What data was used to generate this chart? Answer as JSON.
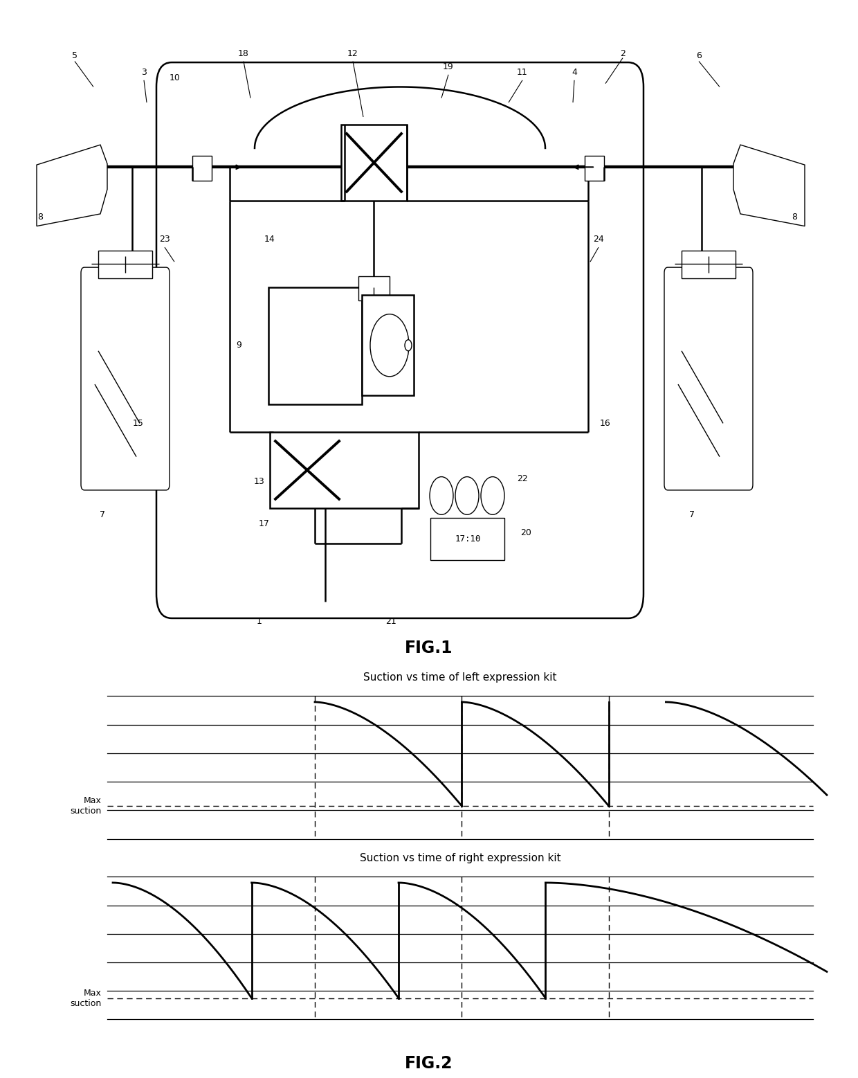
{
  "fig1_label": "FIG.1",
  "fig2_label": "FIG.2",
  "graph1_title": "Suction vs time of left expression kit",
  "graph2_title": "Suction vs time of right expression kit",
  "bg_color": "#ffffff",
  "line_color": "#000000"
}
